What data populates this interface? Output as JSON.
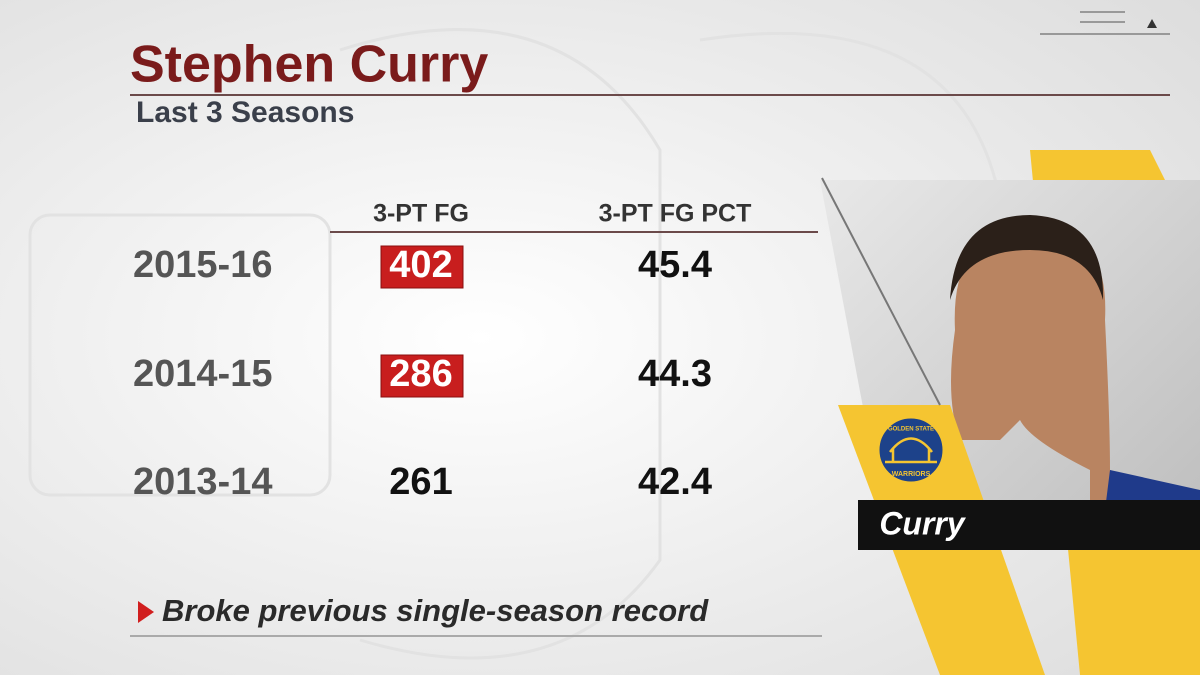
{
  "header": {
    "title": "Stephen Curry",
    "subtitle": "Last 3 Seasons"
  },
  "table": {
    "columns": [
      "3-PT FG",
      "3-PT FG PCT"
    ],
    "rows": [
      {
        "season": "2015-16",
        "fg3": 402,
        "pct": 45.4,
        "record": true
      },
      {
        "season": "2014-15",
        "fg3": 286,
        "pct": 44.3,
        "record": true
      },
      {
        "season": "2013-14",
        "fg3": 261,
        "pct": 42.4,
        "record": false
      }
    ]
  },
  "footnote": "Broke previous single-season record",
  "player": {
    "name": "Curry",
    "team_top": "GOLDEN STATE",
    "team_bottom": "WARRIORS"
  }
}
